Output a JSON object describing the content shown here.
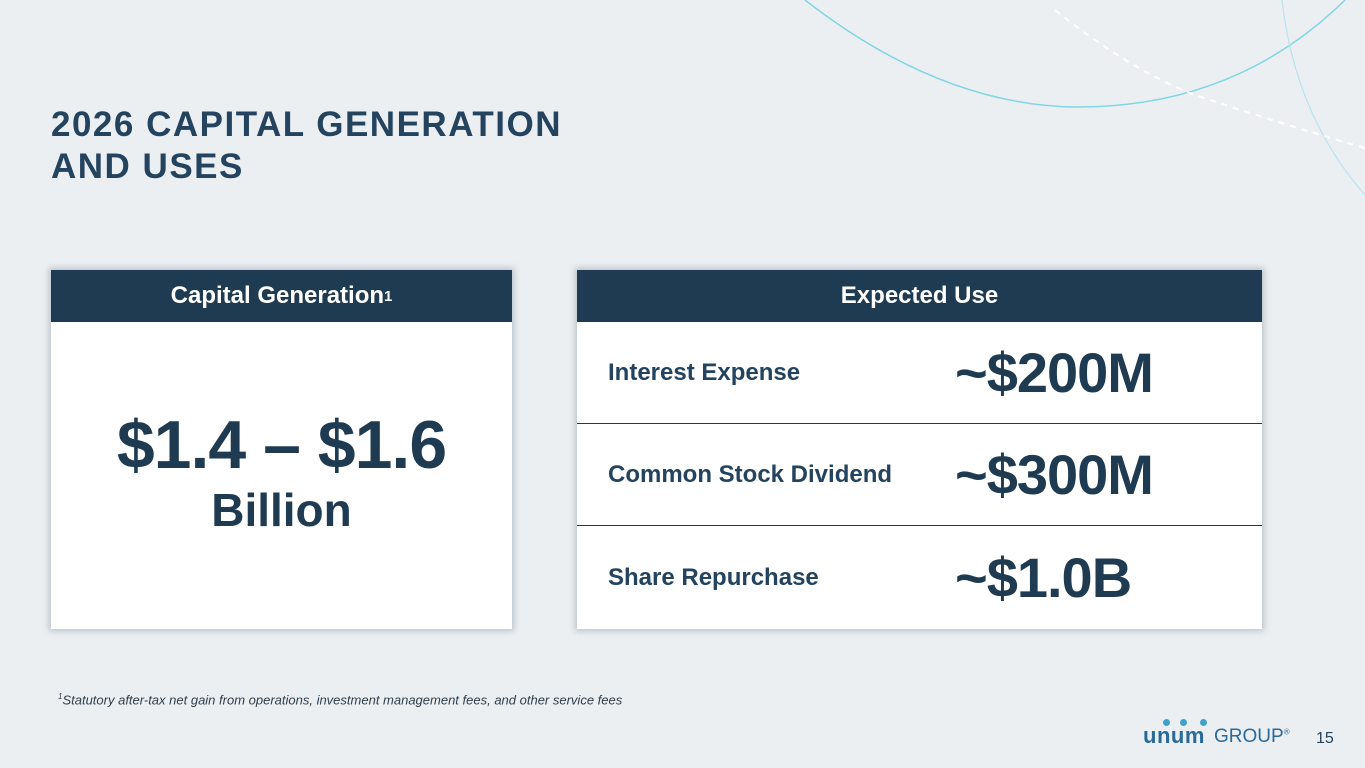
{
  "title": {
    "line1": "2026 CAPITAL GENERATION",
    "line2": "AND USES"
  },
  "capital_generation": {
    "header": "Capital Generation",
    "header_sup": "1",
    "value": "$1.4 – $1.6",
    "unit": "Billion"
  },
  "expected_use": {
    "header": "Expected Use",
    "rows": [
      {
        "label": "Interest Expense",
        "value": "~$200M"
      },
      {
        "label": "Common Stock Dividend",
        "value": "~$300M"
      },
      {
        "label": "Share Repurchase",
        "value": "~$1.0B"
      }
    ]
  },
  "footnote": {
    "marker": "1",
    "text": "Statutory after-tax net gain from operations, investment management fees, and other service fees"
  },
  "logo": {
    "brand": "unum",
    "suffix": "GROUP",
    "mark": "®"
  },
  "page_number": "15",
  "colors": {
    "background": "#eceff2",
    "header_navy": "#1f3b51",
    "accent_teal": "#5fcfe0",
    "logo_blue": "#2a6a9a"
  }
}
